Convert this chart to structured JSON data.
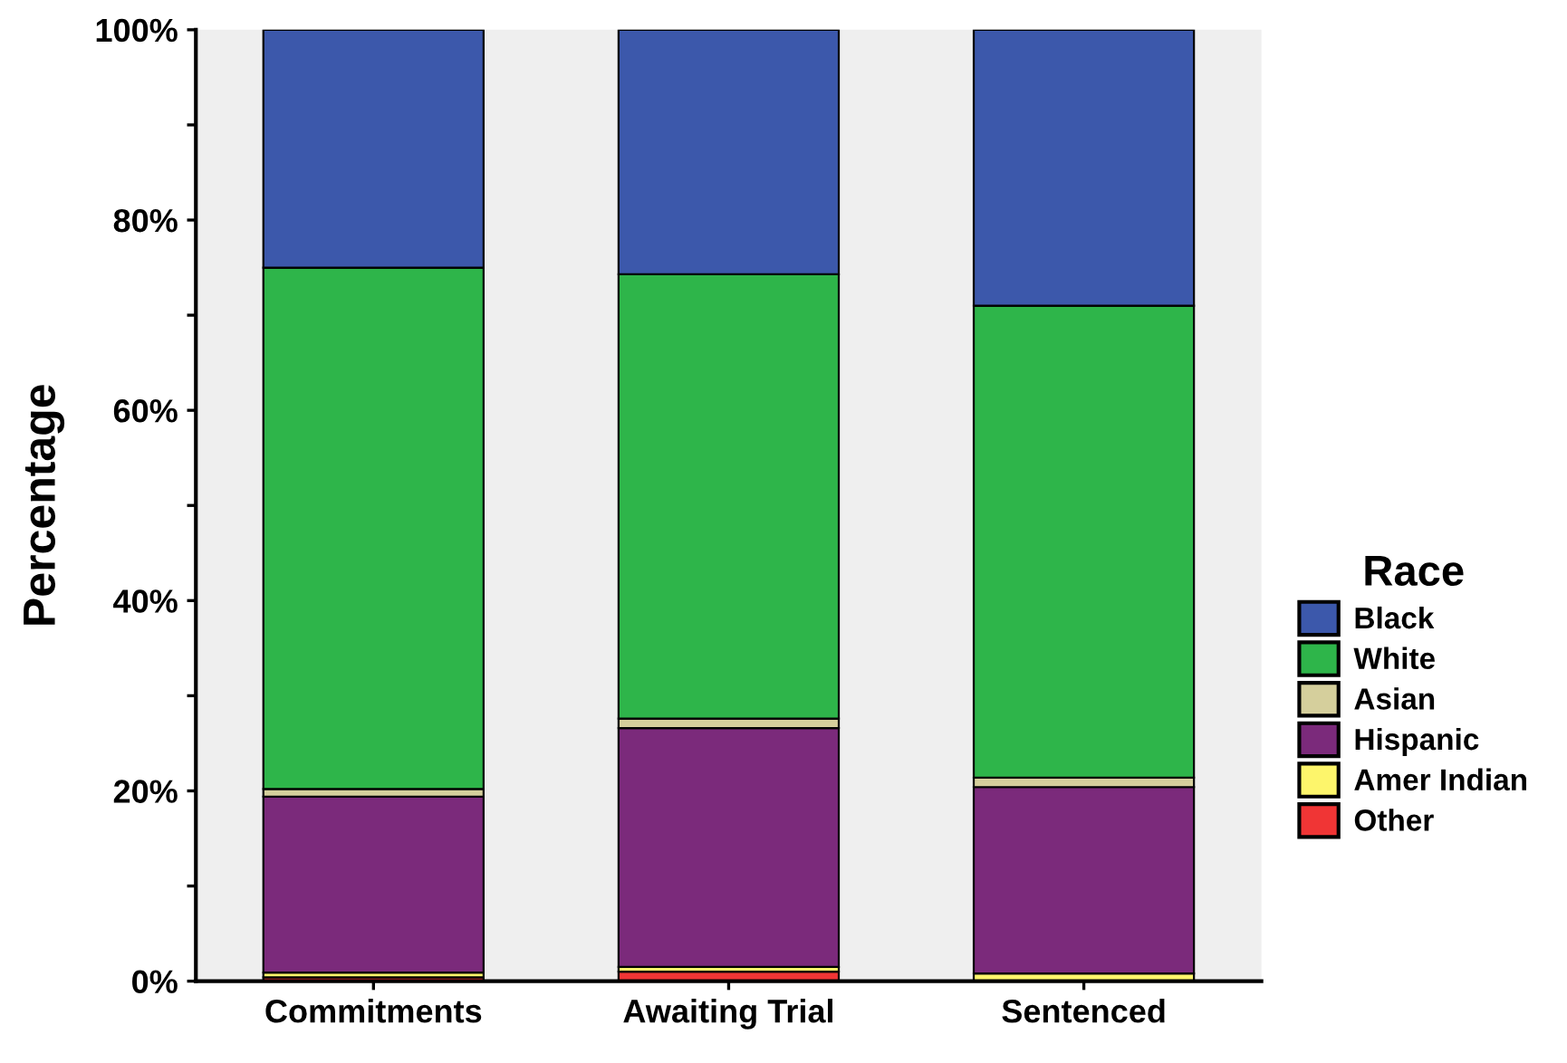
{
  "chart_data": {
    "type": "bar",
    "stacked": true,
    "ylabel": "Percentage",
    "legend_title": "Race",
    "legend": "right",
    "categories": [
      "Commitments",
      "Awaiting Trial",
      "Sentenced"
    ],
    "series": [
      {
        "name": "Other",
        "color": "#f03535",
        "values": [
          0.4,
          1.0,
          null
        ]
      },
      {
        "name": "Amer Indian",
        "color": "#fdf56b",
        "values": [
          0.5,
          0.5,
          0.8
        ]
      },
      {
        "name": "Hispanic",
        "color": "#7b2a7b",
        "values": [
          18.5,
          25.1,
          19.6
        ]
      },
      {
        "name": "Asian",
        "color": "#d5cf9c",
        "values": [
          0.8,
          1.0,
          1.0
        ]
      },
      {
        "name": "White",
        "color": "#2eb54a",
        "values": [
          54.8,
          46.7,
          49.6
        ]
      },
      {
        "name": "Black",
        "color": "#3c58ab",
        "values": [
          25.0,
          25.7,
          29.0
        ]
      }
    ],
    "ylim": [
      0,
      100
    ],
    "yticks": [
      {
        "value": 0,
        "label": "0%"
      },
      {
        "value": 10,
        "label": null
      },
      {
        "value": 20,
        "label": "20%"
      },
      {
        "value": 30,
        "label": null
      },
      {
        "value": 40,
        "label": "40%"
      },
      {
        "value": 50,
        "label": null
      },
      {
        "value": 60,
        "label": "60%"
      },
      {
        "value": 70,
        "label": null
      },
      {
        "value": 80,
        "label": "80%"
      },
      {
        "value": 90,
        "label": null
      },
      {
        "value": 100,
        "label": "100%"
      }
    ],
    "grid": false
  }
}
